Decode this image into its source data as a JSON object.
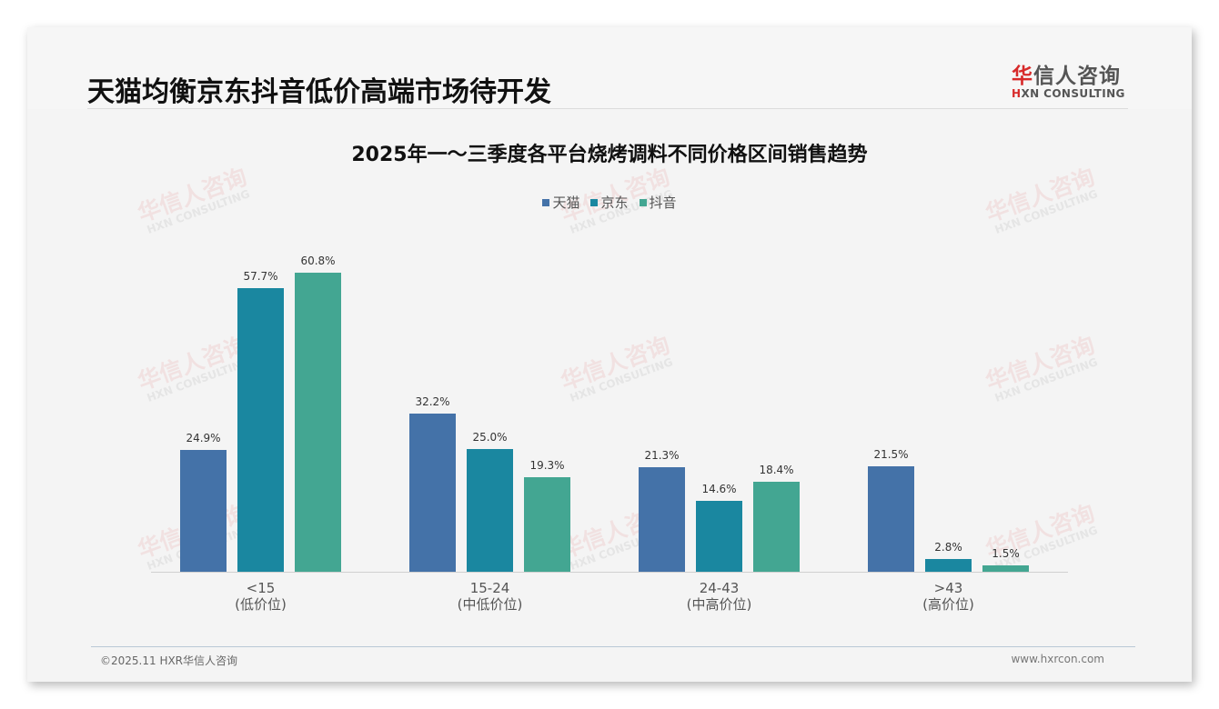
{
  "header": {
    "title": "天猫均衡京东抖音低价高端市场待开发",
    "logo": {
      "cn_red": "华",
      "cn_rest": "信人咨询",
      "en_red": "H",
      "en_rest": "XN CONSULTING"
    }
  },
  "watermark": {
    "cn": "华信人咨询",
    "en": "HXN CONSULTING"
  },
  "chart_data": {
    "type": "bar",
    "title": "2025年一～三季度各平台烧烤调料不同价格区间销售趋势",
    "categories": [
      "<15\n(低价位)",
      "15-24\n(中低价位)",
      "24-43\n(中高价位)",
      ">43\n(高价位)"
    ],
    "category_labels": [
      {
        "range": "<15",
        "tier": "(低价位)"
      },
      {
        "range": "15-24",
        "tier": "(中低价位)"
      },
      {
        "range": "24-43",
        "tier": "(中高价位)"
      },
      {
        "range": ">43",
        "tier": "(高价位)"
      }
    ],
    "series": [
      {
        "name": "天猫",
        "color": "#4472a8",
        "values": [
          24.9,
          32.2,
          21.3,
          21.5
        ],
        "labels": [
          "24.9%",
          "32.2%",
          "21.3%",
          "21.5%"
        ]
      },
      {
        "name": "京东",
        "color": "#1a87a0",
        "values": [
          57.7,
          25.0,
          14.6,
          2.8
        ],
        "labels": [
          "57.7%",
          "25.0%",
          "14.6%",
          "2.8%"
        ]
      },
      {
        "name": "抖音",
        "color": "#43a692",
        "values": [
          60.8,
          19.3,
          18.4,
          1.5
        ],
        "labels": [
          "60.8%",
          "19.3%",
          "18.4%",
          "1.5%"
        ]
      }
    ],
    "xlabel": "",
    "ylabel": "",
    "unit": "%",
    "ylim": [
      0,
      65
    ],
    "grid": false,
    "legend_position": "top"
  },
  "footer": {
    "copyright": "©2025.11 HXR华信人咨询",
    "website": "www.hxrcon.com"
  }
}
